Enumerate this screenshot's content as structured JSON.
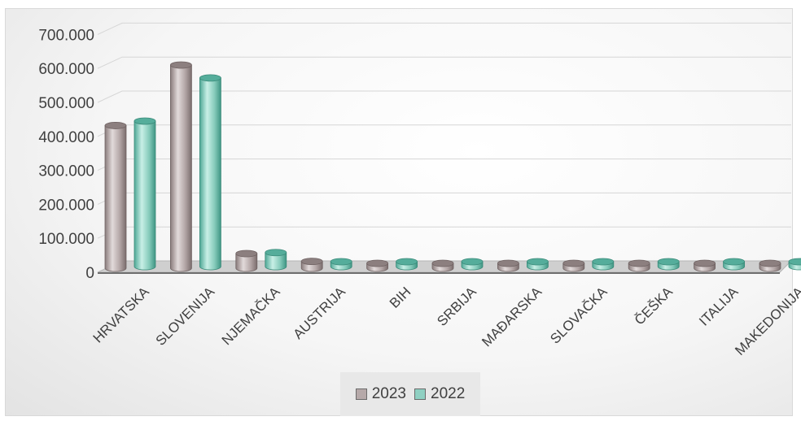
{
  "chart_data": {
    "type": "bar",
    "categories": [
      "HRVATSKA",
      "SLOVENIJA",
      "NJEMAČKA",
      "AUSTRIJA",
      "BIH",
      "SRBIJA",
      "MAĐARSKA",
      "SLOVAČKA",
      "ČEŠKA",
      "ITALIJA",
      "MAKEDONIJA"
    ],
    "series": [
      {
        "name": "2023",
        "color": "#b6a9a9",
        "values": [
          432000,
          610000,
          55000,
          32000,
          22000,
          18000,
          14000,
          13000,
          12000,
          11000,
          9000
        ]
      },
      {
        "name": "2022",
        "color": "#8fd0c2",
        "values": [
          445000,
          572000,
          58000,
          28000,
          18000,
          13000,
          11000,
          11000,
          11000,
          9000,
          7000
        ]
      }
    ],
    "yticks": [
      "0",
      "100.000",
      "200.000",
      "300.000",
      "400.000",
      "500.000",
      "600.000",
      "700.000"
    ],
    "ylim": [
      0,
      700000
    ],
    "grid": true,
    "legend_position": "bottom"
  }
}
